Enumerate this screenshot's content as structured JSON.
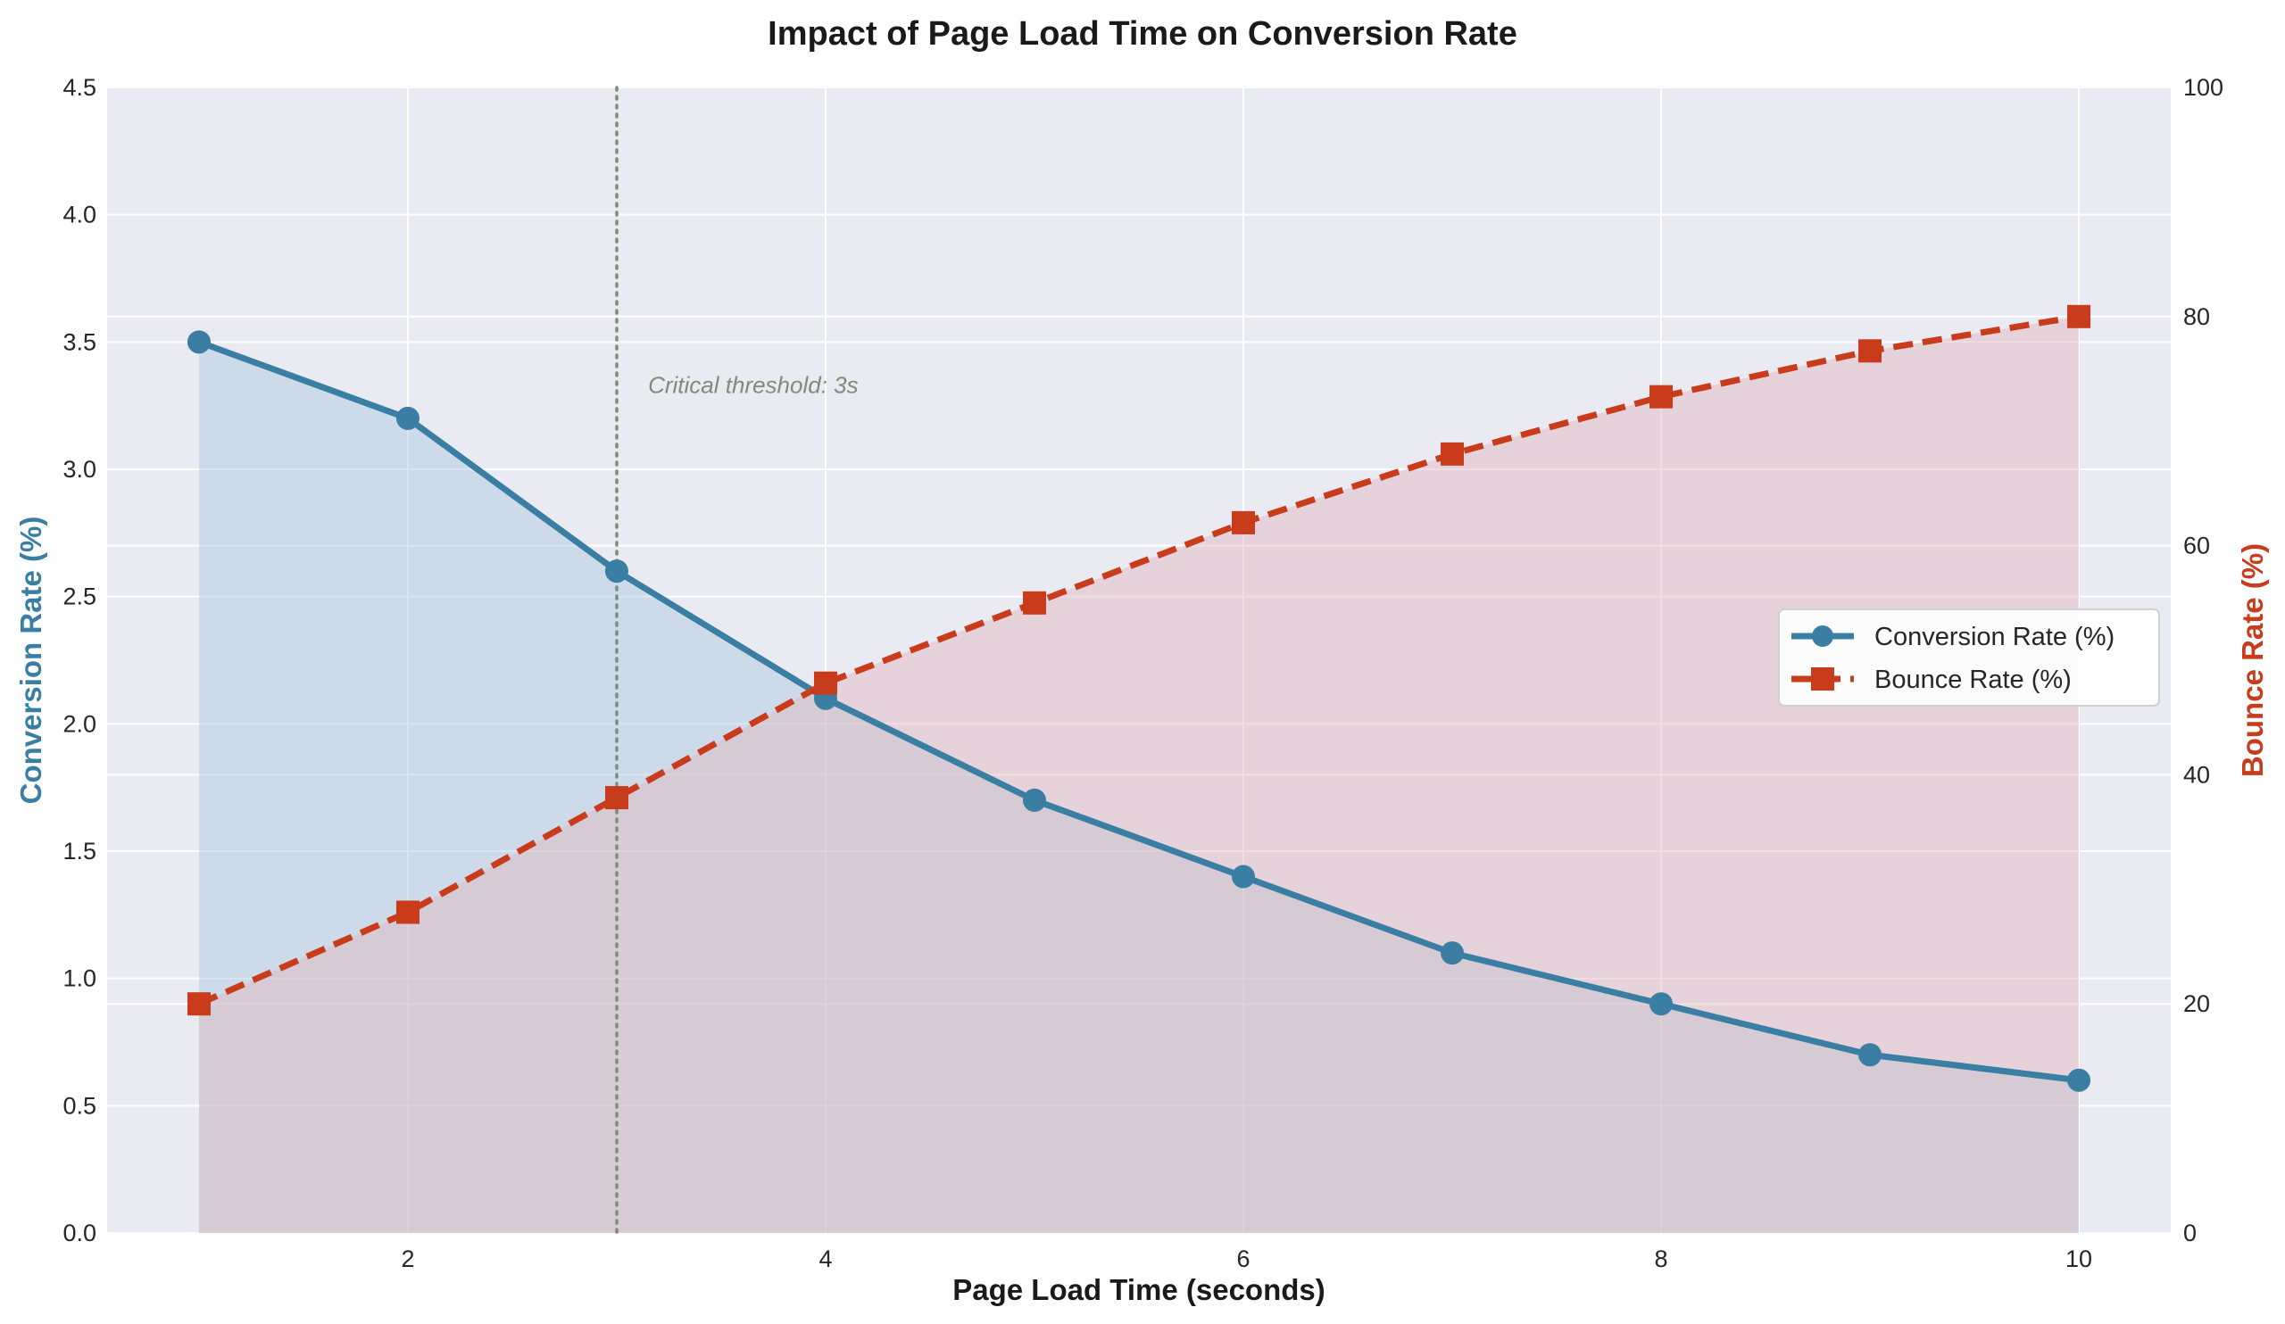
{
  "chart_data": {
    "type": "line",
    "title": "Impact of Page Load Time on Conversion Rate",
    "xlabel": "Page Load Time (seconds)",
    "ylabel_left": "Conversion Rate (%)",
    "ylabel_right": "Bounce Rate (%)",
    "x": [
      1,
      2,
      3,
      4,
      5,
      6,
      7,
      8,
      9,
      10
    ],
    "xlim": [
      0.56,
      10.44
    ],
    "x_ticks": [
      2,
      4,
      6,
      8,
      10
    ],
    "ylim_left": [
      0,
      4.5
    ],
    "y_ticks_left": [
      0.0,
      0.5,
      1.0,
      1.5,
      2.0,
      2.5,
      3.0,
      3.5,
      4.0,
      4.5
    ],
    "ylim_right": [
      0,
      100
    ],
    "y_ticks_right": [
      0,
      20,
      40,
      60,
      80,
      100
    ],
    "grid": true,
    "legend_position": "center-right",
    "series": [
      {
        "name": "Conversion Rate (%)",
        "axis": "left",
        "values": [
          3.5,
          3.2,
          2.6,
          2.1,
          1.7,
          1.4,
          1.1,
          0.9,
          0.7,
          0.6
        ],
        "color": "#3a7fa3",
        "fill_color": "#a8c8df",
        "marker": "circle",
        "line_style": "solid"
      },
      {
        "name": "Bounce Rate (%)",
        "axis": "right",
        "values": [
          20,
          28,
          38,
          48,
          55,
          62,
          68,
          73,
          77,
          80
        ],
        "color": "#c83c1c",
        "fill_color": "#e3b5bd",
        "marker": "square",
        "line_style": "dashed"
      }
    ],
    "annotations": [
      {
        "type": "vline",
        "x": 3,
        "color": "#7f8c7a",
        "style": "dotted"
      },
      {
        "type": "text",
        "x": 3.15,
        "y_left": 3.3,
        "text": "Critical threshold: 3s",
        "color": "#7f8c7a"
      }
    ],
    "plot_background": "#eaeaf2",
    "grid_color": "#ffffff"
  }
}
